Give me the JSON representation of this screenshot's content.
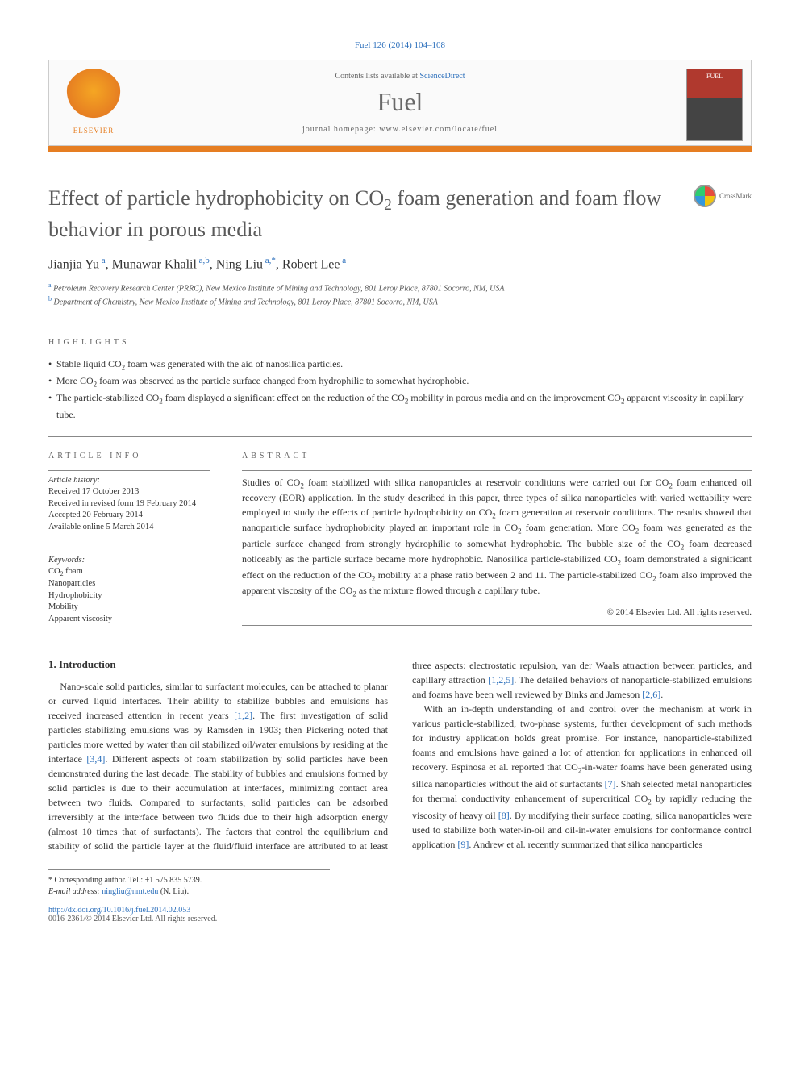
{
  "journal_ref": "Fuel 126 (2014) 104–108",
  "header": {
    "contents_prefix": "Contents lists available at ",
    "contents_link": "ScienceDirect",
    "journal_name": "Fuel",
    "homepage_prefix": "journal homepage: ",
    "homepage_url": "www.elsevier.com/locate/fuel",
    "publisher_logo_text": "ELSEVIER",
    "cover_text": "FUEL"
  },
  "colors": {
    "accent": "#e67e22",
    "link": "#2a6ebb",
    "text_gray": "#5a5a5a"
  },
  "crossmark_label": "CrossMark",
  "title_html": "Effect of particle hydrophobicity on CO<sub>2</sub> foam generation and foam flow behavior in porous media",
  "authors_html": "Jianjia Yu<span class='aff'> a</span>, Munawar Khalil<span class='aff'> a,b</span>, Ning Liu<span class='aff'> a,*</span>, Robert Lee<span class='aff'> a</span>",
  "affiliations": [
    {
      "sup": "a",
      "text": "Petroleum Recovery Research Center (PRRC), New Mexico Institute of Mining and Technology, 801 Leroy Place, 87801 Socorro, NM, USA"
    },
    {
      "sup": "b",
      "text": "Department of Chemistry, New Mexico Institute of Mining and Technology, 801 Leroy Place, 87801 Socorro, NM, USA"
    }
  ],
  "highlights_label": "HIGHLIGHTS",
  "highlights": [
    "Stable liquid CO<sub>2</sub> foam was generated with the aid of nanosilica particles.",
    "More CO<sub>2</sub> foam was observed as the particle surface changed from hydrophilic to somewhat hydrophobic.",
    "The particle-stabilized CO<sub>2</sub> foam displayed a significant effect on the reduction of the CO<sub>2</sub> mobility in porous media and on the improvement CO<sub>2</sub> apparent viscosity in capillary tube."
  ],
  "article_info_label": "ARTICLE INFO",
  "history_head": "Article history:",
  "history": [
    "Received 17 October 2013",
    "Received in revised form 19 February 2014",
    "Accepted 20 February 2014",
    "Available online 5 March 2014"
  ],
  "keywords_head": "Keywords:",
  "keywords": [
    "CO<sub>2</sub> foam",
    "Nanoparticles",
    "Hydrophobicity",
    "Mobility",
    "Apparent viscosity"
  ],
  "abstract_label": "ABSTRACT",
  "abstract_html": "Studies of CO<sub>2</sub> foam stabilized with silica nanoparticles at reservoir conditions were carried out for CO<sub>2</sub> foam enhanced oil recovery (EOR) application. In the study described in this paper, three types of silica nanoparticles with varied wettability were employed to study the effects of particle hydrophobicity on CO<sub>2</sub> foam generation at reservoir conditions. The results showed that nanoparticle surface hydrophobicity played an important role in CO<sub>2</sub> foam generation. More CO<sub>2</sub> foam was generated as the particle surface changed from strongly hydrophilic to somewhat hydrophobic. The bubble size of the CO<sub>2</sub> foam decreased noticeably as the particle surface became more hydrophobic. Nanosilica particle-stabilized CO<sub>2</sub> foam demonstrated a significant effect on the reduction of the CO<sub>2</sub> mobility at a phase ratio between 2 and 11. The particle-stabilized CO<sub>2</sub> foam also improved the apparent viscosity of the CO<sub>2</sub> as the mixture flowed through a capillary tube.",
  "copyright": "© 2014 Elsevier Ltd. All rights reserved.",
  "intro_heading": "1. Introduction",
  "intro_p1": "Nano-scale solid particles, similar to surfactant molecules, can be attached to planar or curved liquid interfaces. Their ability to stabilize bubbles and emulsions has received increased attention in recent years <span class='ref'>[1,2]</span>. The first investigation of solid particles stabilizing emulsions was by Ramsden in 1903; then Pickering noted that particles more wetted by water than oil stabilized oil/water emulsions by residing at the interface <span class='ref'>[3,4]</span>. Different aspects of foam stabilization by solid particles have been demonstrated during the last decade. The stability of bubbles and emulsions formed by solid particles is due to their accumulation at interfaces, minimizing contact area between two fluids. Compared to surfactants, solid particles can be adsorbed irreversibly at the interface between two fluids due to their high adsorption energy (almost 10 times that of surfactants). The factors that control the equilibrium and stability of solid the particle layer at the fluid/fluid interface are attributed to at least three aspects: electrostatic repulsion, van der Waals attraction between particles, and capillary attraction <span class='ref'>[1,2,5]</span>. The detailed behaviors of nanoparticle-stabilized emulsions and foams have been well reviewed by Binks and Jameson <span class='ref'>[2,6]</span>.",
  "intro_p2": "With an in-depth understanding of and control over the mechanism at work in various particle-stabilized, two-phase systems, further development of such methods for industry application holds great promise. For instance, nanoparticle-stabilized foams and emulsions have gained a lot of attention for applications in enhanced oil recovery. Espinosa et al. reported that CO<sub>2</sub>-in-water foams have been generated using silica nanoparticles without the aid of surfactants <span class='ref'>[7]</span>. Shah selected metal nanoparticles for thermal conductivity enhancement of supercritical CO<sub>2</sub> by rapidly reducing the viscosity of heavy oil <span class='ref'>[8]</span>. By modifying their surface coating, silica nanoparticles were used to stabilize both water-in-oil and oil-in-water emulsions for conformance control application <span class='ref'>[9]</span>. Andrew et al. recently summarized that silica nanoparticles",
  "footnote": {
    "corr": "* Corresponding author. Tel.: +1 575 835 5739.",
    "email_label": "E-mail address: ",
    "email": "ningliu@nmt.edu",
    "email_suffix": " (N. Liu)."
  },
  "doi": "http://dx.doi.org/10.1016/j.fuel.2014.02.053",
  "issn_line": "0016-2361/© 2014 Elsevier Ltd. All rights reserved."
}
